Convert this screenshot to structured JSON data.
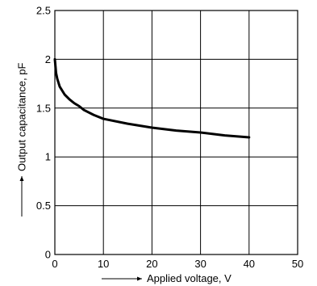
{
  "chart_data": {
    "type": "line",
    "title": "",
    "xlabel": "Applied voltage, V",
    "ylabel": "Output capacitance, pF",
    "xlim": [
      0,
      50
    ],
    "ylim": [
      0,
      2.5
    ],
    "x_ticks": [
      "0",
      "10",
      "20",
      "30",
      "40",
      "50"
    ],
    "y_ticks": [
      "0",
      "0.5",
      "1",
      "1.5",
      "2",
      "2.5"
    ],
    "grid": true,
    "legend": "none",
    "series": [
      {
        "color": "#000000",
        "x": [
          0,
          0.25,
          0.5,
          1,
          2,
          3,
          4,
          5,
          6,
          8,
          10,
          15,
          20,
          25,
          30,
          35,
          40
        ],
        "y": [
          2.0,
          1.86,
          1.8,
          1.72,
          1.64,
          1.59,
          1.55,
          1.52,
          1.48,
          1.43,
          1.39,
          1.34,
          1.3,
          1.27,
          1.25,
          1.22,
          1.2
        ]
      }
    ]
  }
}
